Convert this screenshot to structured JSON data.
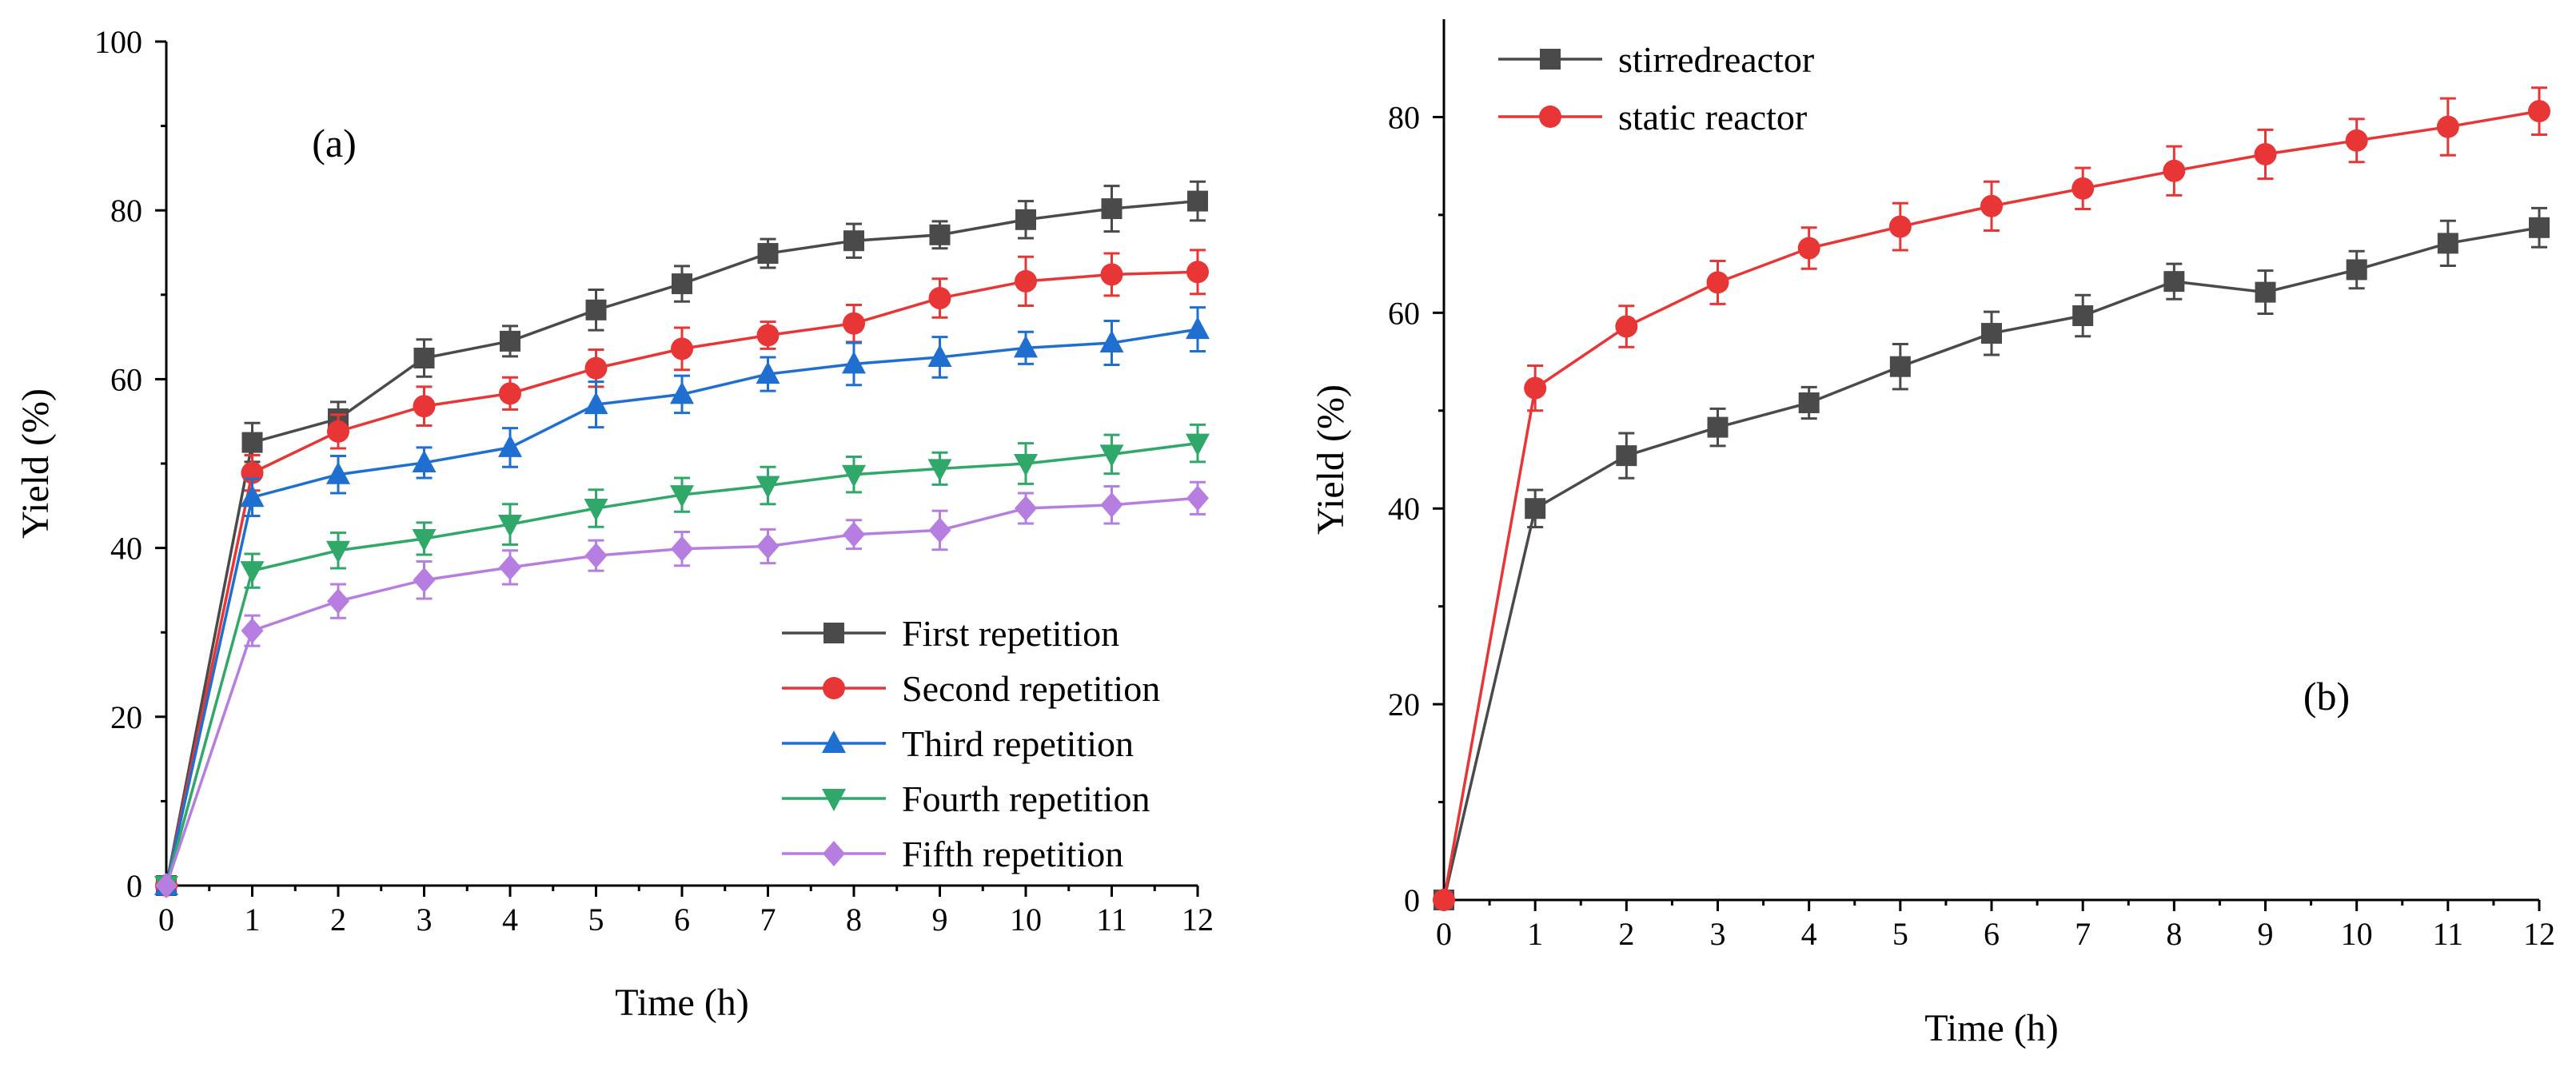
{
  "chart_data": [
    {
      "type": "line",
      "panel_label": "(a)",
      "xlabel": "Time (h)",
      "ylabel": "Yield (%)",
      "xlim": [
        0,
        12
      ],
      "ylim": [
        0,
        100
      ],
      "xticks": [
        0,
        1,
        2,
        3,
        4,
        5,
        6,
        7,
        8,
        9,
        10,
        11,
        12
      ],
      "yticks": [
        0,
        20,
        40,
        60,
        80,
        100
      ],
      "grid": false,
      "legend_position": "bottom-right",
      "x": [
        0,
        1,
        2,
        3,
        4,
        5,
        6,
        7,
        8,
        9,
        10,
        11,
        12
      ],
      "series": [
        {
          "name": "First repetition",
          "color": "#4a4a4a",
          "marker": "square",
          "values": [
            0,
            52.5,
            55.3,
            62.5,
            64.5,
            68.2,
            71.3,
            74.9,
            76.4,
            77.1,
            78.9,
            80.2,
            81.1
          ],
          "errors": [
            0,
            2.3,
            2.0,
            2.2,
            1.8,
            2.4,
            2.1,
            1.7,
            2.0,
            1.6,
            2.2,
            2.7,
            2.3
          ]
        },
        {
          "name": "Second repetition",
          "color": "#e83535",
          "marker": "circle",
          "values": [
            0,
            48.9,
            53.8,
            56.8,
            58.3,
            61.3,
            63.6,
            65.2,
            66.6,
            69.6,
            71.6,
            72.4,
            72.7
          ],
          "errors": [
            0,
            2.1,
            2.0,
            2.3,
            1.9,
            2.2,
            2.5,
            1.6,
            2.2,
            2.3,
            2.9,
            2.5,
            2.6
          ]
        },
        {
          "name": "Third repetition",
          "color": "#1f6fd1",
          "marker": "triangle-up",
          "values": [
            0,
            46.0,
            48.7,
            50.1,
            51.9,
            57.0,
            58.2,
            60.6,
            61.8,
            62.6,
            63.7,
            64.3,
            65.9
          ],
          "errors": [
            0,
            2.2,
            2.2,
            1.8,
            2.3,
            2.7,
            2.2,
            2.0,
            2.5,
            2.4,
            1.9,
            2.6,
            2.6
          ]
        },
        {
          "name": "Fourth repetition",
          "color": "#2fa86a",
          "marker": "triangle-down",
          "values": [
            0,
            37.3,
            39.7,
            41.1,
            42.8,
            44.7,
            46.3,
            47.4,
            48.7,
            49.4,
            50.0,
            51.1,
            52.4
          ],
          "errors": [
            0,
            2.0,
            2.1,
            1.9,
            2.4,
            2.2,
            2.0,
            2.2,
            2.1,
            1.9,
            2.4,
            2.3,
            2.2
          ]
        },
        {
          "name": "Fifth repetition",
          "color": "#b57ee0",
          "marker": "diamond",
          "values": [
            0,
            30.2,
            33.7,
            36.2,
            37.7,
            39.1,
            39.9,
            40.2,
            41.6,
            42.1,
            44.7,
            45.1,
            45.9
          ],
          "errors": [
            0,
            1.8,
            2.0,
            2.2,
            2.0,
            1.8,
            2.0,
            2.0,
            1.7,
            2.3,
            1.8,
            2.2,
            1.9
          ]
        }
      ]
    },
    {
      "type": "line",
      "panel_label": "(b)",
      "xlabel": "Time (h)",
      "ylabel": "Yield (%)",
      "xlim": [
        0,
        12
      ],
      "ylim": [
        0,
        90
      ],
      "xticks": [
        0,
        1,
        2,
        3,
        4,
        5,
        6,
        7,
        8,
        9,
        10,
        11,
        12
      ],
      "yticks": [
        0,
        20,
        40,
        60,
        80
      ],
      "grid": false,
      "legend_position": "top-left",
      "x": [
        0,
        1,
        2,
        3,
        4,
        5,
        6,
        7,
        8,
        9,
        10,
        11,
        12
      ],
      "series": [
        {
          "name": "stirredreactor",
          "color": "#4a4a4a",
          "marker": "square",
          "values": [
            0,
            40.0,
            45.4,
            48.3,
            50.8,
            54.5,
            57.9,
            59.7,
            63.2,
            62.1,
            64.4,
            67.1,
            68.7
          ],
          "errors": [
            0,
            1.9,
            2.3,
            1.9,
            1.6,
            2.3,
            2.2,
            2.1,
            1.8,
            2.2,
            1.9,
            2.3,
            2.0
          ]
        },
        {
          "name": "static reactor",
          "color": "#e83535",
          "marker": "circle",
          "values": [
            0,
            52.3,
            58.6,
            63.1,
            66.6,
            68.8,
            70.9,
            72.7,
            74.5,
            76.2,
            77.6,
            79.0,
            80.6
          ],
          "errors": [
            0,
            2.3,
            2.1,
            2.2,
            2.1,
            2.4,
            2.5,
            2.1,
            2.5,
            2.5,
            2.2,
            2.9,
            2.4
          ]
        }
      ]
    }
  ]
}
